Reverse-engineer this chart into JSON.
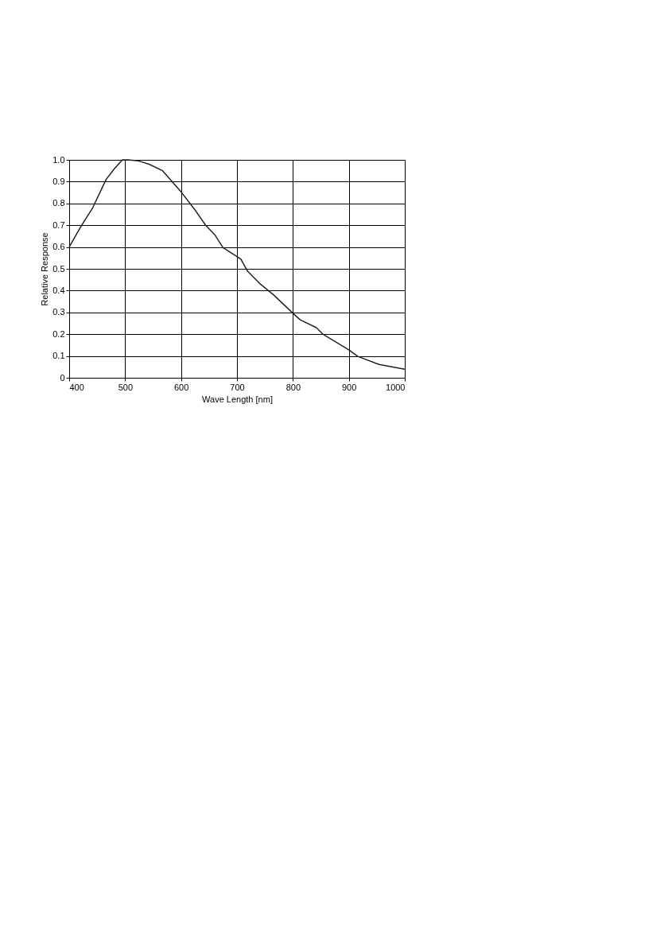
{
  "chart_data": {
    "type": "line",
    "xlabel": "Wave Length [nm]",
    "ylabel": "Relative Response",
    "x": [
      400,
      420,
      442,
      466,
      481,
      495,
      505,
      524,
      543,
      567,
      601,
      625,
      644,
      661,
      675,
      700,
      707,
      719,
      740,
      766,
      800,
      813,
      842,
      854,
      900,
      916,
      954,
      1000
    ],
    "series": [
      {
        "color": "#222222",
        "values": [
          0.6,
          0.69,
          0.78,
          0.91,
          0.96,
          1.0,
          1.0,
          0.995,
          0.98,
          0.95,
          0.85,
          0.77,
          0.7,
          0.654,
          0.597,
          0.556,
          0.544,
          0.489,
          0.434,
          0.379,
          0.296,
          0.266,
          0.23,
          0.199,
          0.128,
          0.098,
          0.061,
          0.039
        ]
      }
    ],
    "xlim": [
      400,
      1000
    ],
    "xticks": [
      400,
      500,
      600,
      700,
      800,
      900,
      1000
    ],
    "ylim": [
      0,
      1
    ],
    "yticks": [
      0,
      0.1,
      0.2,
      0.3,
      0.4,
      0.5,
      0.6,
      0.7,
      0.8,
      0.9,
      {
        "value": 1,
        "label": "1.0"
      }
    ],
    "grid": true,
    "legend": false,
    "marker": "none",
    "line_style": "solid"
  }
}
